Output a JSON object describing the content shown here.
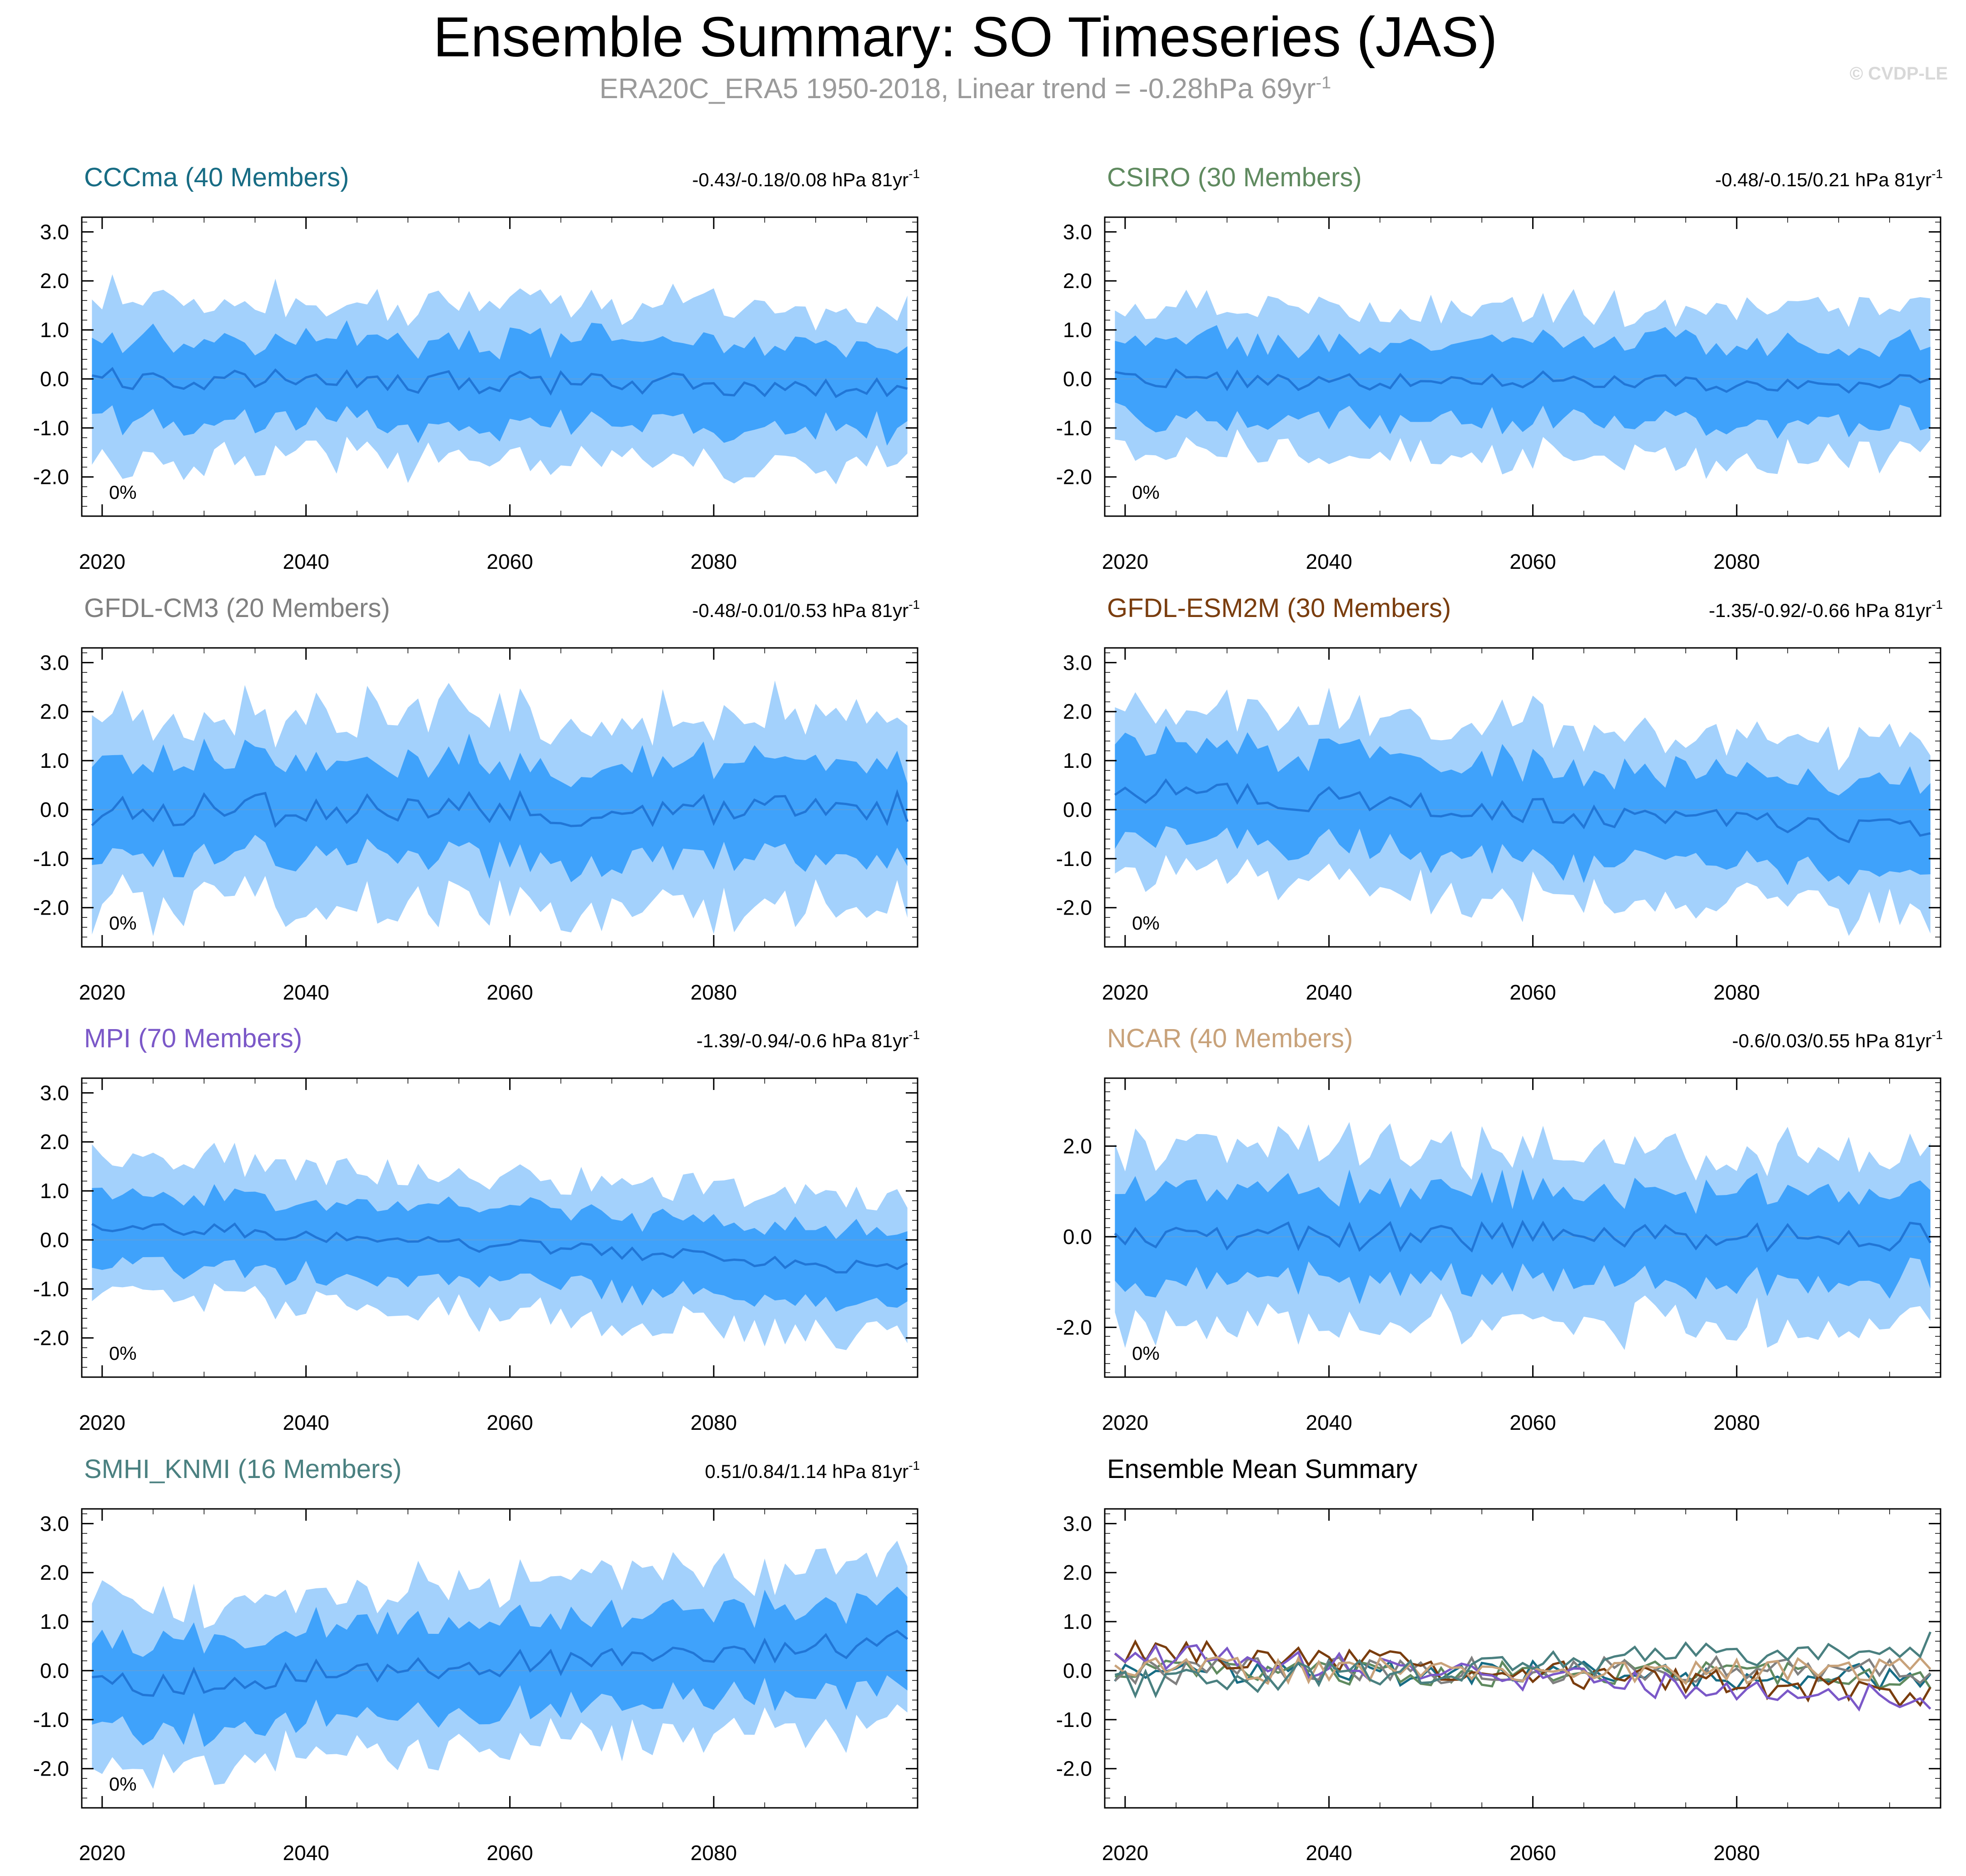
{
  "title": "Ensemble Summary: SO Timeseries (JAS)",
  "subtitle": "ERA20C_ERA5 1950-2018, Linear trend = -0.28hPa 69yr",
  "subtitle_sup": "-1",
  "copyright": "© CVDP-LE",
  "colors": {
    "band_outer": "#a3d1fc",
    "band_inner": "#3fa2fb",
    "mean_line": "#2176d6",
    "axis": "#000000"
  },
  "chart_data": [
    {
      "type": "area",
      "id": "cccma",
      "title": "CCCma (40 Members)",
      "title_color": "#176c84",
      "trend": "-0.43/-0.18/0.08 hPa 81yr",
      "trend_sup": "-1",
      "pct": "0%",
      "yticks": [
        3.0,
        2.0,
        1.0,
        0.0,
        -1.0,
        -2.0
      ],
      "ylim": [
        -2.8,
        3.3
      ],
      "xlim": [
        2018,
        2100
      ],
      "xticks": [
        2020,
        2040,
        2060,
        2080
      ],
      "base_mean": 0.0,
      "slope": -0.15,
      "inner": 0.85,
      "outer": 1.55,
      "noise": 0.45,
      "seed": 1
    },
    {
      "type": "area",
      "id": "csiro",
      "title": "CSIRO (30 Members)",
      "title_color": "#5f8a5f",
      "trend": "-0.48/-0.15/0.21 hPa 81yr",
      "trend_sup": "-1",
      "pct": "0%",
      "yticks": [
        3.0,
        2.0,
        1.0,
        0.0,
        -1.0,
        -2.0
      ],
      "ylim": [
        -2.8,
        3.3
      ],
      "xlim": [
        2018,
        2100
      ],
      "xticks": [
        2020,
        2040,
        2060,
        2080
      ],
      "base_mean": 0.0,
      "slope": -0.1,
      "inner": 0.8,
      "outer": 1.45,
      "noise": 0.4,
      "seed": 2
    },
    {
      "type": "area",
      "id": "gfdl-cm3",
      "title": "GFDL-CM3 (20 Members)",
      "title_color": "#808080",
      "trend": "-0.48/-0.01/0.53 hPa 81yr",
      "trend_sup": "-1",
      "pct": "0%",
      "yticks": [
        3.0,
        2.0,
        1.0,
        0.0,
        -1.0,
        -2.0
      ],
      "ylim": [
        -2.8,
        3.3
      ],
      "xlim": [
        2018,
        2100
      ],
      "xticks": [
        2020,
        2040,
        2060,
        2080
      ],
      "base_mean": 0.0,
      "slope": 0.0,
      "inner": 1.0,
      "outer": 1.9,
      "noise": 0.7,
      "seed": 3
    },
    {
      "type": "area",
      "id": "gfdl-esm2m",
      "title": "GFDL-ESM2M (30 Members)",
      "title_color": "#7a3d0e",
      "trend": "-1.35/-0.92/-0.66 hPa 81yr",
      "trend_sup": "-1",
      "pct": "0%",
      "yticks": [
        3.0,
        2.0,
        1.0,
        0.0,
        -1.0,
        -2.0
      ],
      "ylim": [
        -2.8,
        3.3
      ],
      "xlim": [
        2018,
        2100
      ],
      "xticks": [
        2020,
        2040,
        2060,
        2080
      ],
      "base_mean": 0.45,
      "slope": -0.95,
      "inner": 0.95,
      "outer": 1.7,
      "noise": 0.55,
      "seed": 4
    },
    {
      "type": "area",
      "id": "mpi",
      "title": "MPI (70 Members)",
      "title_color": "#7b58c8",
      "trend": "-1.39/-0.94/-0.6 hPa 81yr",
      "trend_sup": "-1",
      "pct": "0%",
      "yticks": [
        3.0,
        2.0,
        1.0,
        0.0,
        -1.0,
        -2.0
      ],
      "ylim": [
        -2.8,
        3.3
      ],
      "xlim": [
        2018,
        2100
      ],
      "xticks": [
        2020,
        2040,
        2060,
        2080
      ],
      "base_mean": 0.35,
      "slope": -0.95,
      "inner": 0.75,
      "outer": 1.35,
      "noise": 0.3,
      "seed": 5
    },
    {
      "type": "area",
      "id": "ncar",
      "title": "NCAR (40 Members)",
      "title_color": "#c8a27a",
      "trend": "-0.6/0.03/0.55 hPa 81yr",
      "trend_sup": "-1",
      "pct": "0%",
      "yticks": [
        2.0,
        0.0,
        -2.0
      ],
      "ylim": [
        -3.1,
        3.5
      ],
      "xlim": [
        2018,
        2100
      ],
      "xticks": [
        2020,
        2040,
        2060,
        2080
      ],
      "base_mean": 0.0,
      "slope": 0.0,
      "inner": 1.0,
      "outer": 1.85,
      "noise": 0.65,
      "seed": 6
    },
    {
      "type": "area",
      "id": "smhi-knmi",
      "title": "SMHI_KNMI (16 Members)",
      "title_color": "#4a8080",
      "trend": "0.51/0.84/1.14 hPa 81yr",
      "trend_sup": "-1",
      "pct": "0%",
      "yticks": [
        3.0,
        2.0,
        1.0,
        0.0,
        -1.0,
        -2.0
      ],
      "ylim": [
        -2.8,
        3.3
      ],
      "xlim": [
        2018,
        2100
      ],
      "xticks": [
        2020,
        2040,
        2060,
        2080
      ],
      "base_mean": -0.3,
      "slope": 0.85,
      "inner": 0.9,
      "outer": 1.6,
      "noise": 0.55,
      "seed": 7
    },
    {
      "type": "line",
      "id": "ensemble-mean",
      "title": "Ensemble Mean Summary",
      "title_color": "#000000",
      "yticks": [
        3.0,
        2.0,
        1.0,
        0.0,
        -1.0,
        -2.0
      ],
      "ylim": [
        -2.8,
        3.3
      ],
      "xlim": [
        2018,
        2100
      ],
      "xticks": [
        2020,
        2040,
        2060,
        2080
      ],
      "series": [
        {
          "name": "CCCma",
          "color": "#176c84",
          "base_mean": 0.0,
          "slope": -0.15,
          "seed": 1
        },
        {
          "name": "CSIRO",
          "color": "#5f8a5f",
          "base_mean": 0.0,
          "slope": -0.1,
          "seed": 2
        },
        {
          "name": "GFDL-CM3",
          "color": "#808080",
          "base_mean": 0.0,
          "slope": 0.0,
          "seed": 3
        },
        {
          "name": "GFDL-ESM2M",
          "color": "#7a3d0e",
          "base_mean": 0.45,
          "slope": -0.95,
          "seed": 4
        },
        {
          "name": "MPI",
          "color": "#7b58c8",
          "base_mean": 0.35,
          "slope": -0.95,
          "seed": 5
        },
        {
          "name": "NCAR",
          "color": "#c8a27a",
          "base_mean": 0.0,
          "slope": 0.0,
          "seed": 6
        },
        {
          "name": "SMHI_KNMI",
          "color": "#4a8080",
          "base_mean": -0.3,
          "slope": 0.85,
          "seed": 7
        }
      ]
    }
  ]
}
